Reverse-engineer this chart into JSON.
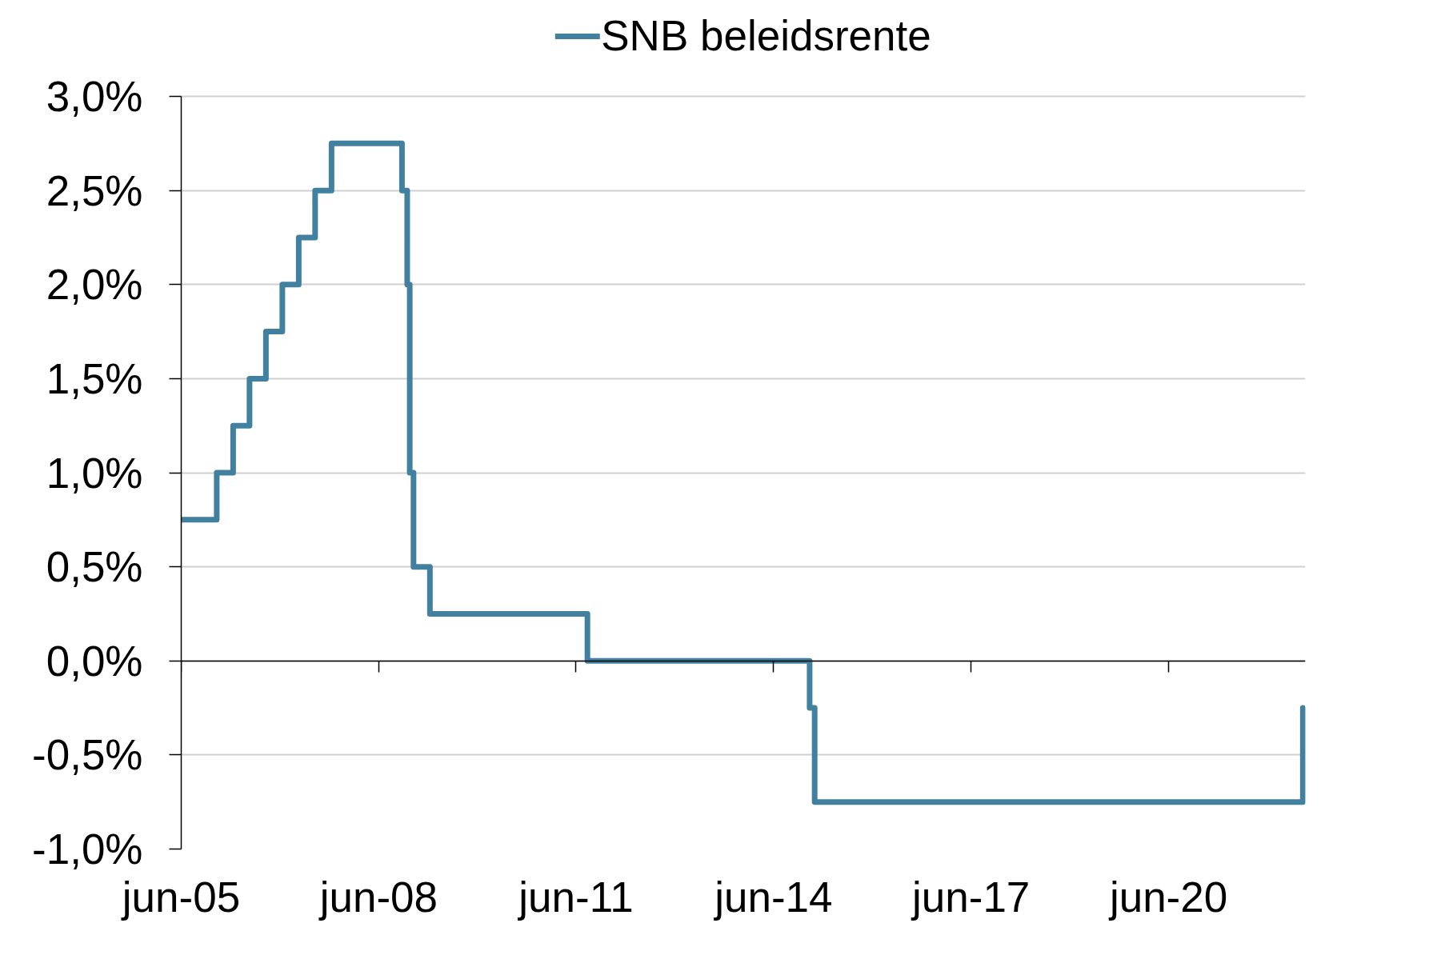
{
  "chart_data": {
    "type": "step",
    "series": [
      {
        "name": "SNB beleidsrente",
        "color": "#41809f",
        "x": [
          "2005-06-01",
          "2005-12-15",
          "2006-03-16",
          "2006-06-15",
          "2006-09-14",
          "2006-12-14",
          "2007-03-15",
          "2007-06-14",
          "2007-09-13",
          "2008-10-08",
          "2008-11-06",
          "2008-11-20",
          "2008-12-11",
          "2009-03-12",
          "2011-08-03",
          "2014-12-18",
          "2015-01-15",
          "2022-06-16"
        ],
        "values": [
          0.75,
          1.0,
          1.25,
          1.5,
          1.75,
          2.0,
          2.25,
          2.5,
          2.75,
          2.5,
          2.0,
          1.0,
          0.5,
          0.25,
          0.0,
          -0.25,
          -0.75,
          -0.25
        ]
      }
    ],
    "xlim": [
      "2005-06-01",
      "2022-06-30"
    ],
    "xticks": [
      {
        "value": "2005-06-01",
        "label": "jun-05"
      },
      {
        "value": "2008-06-01",
        "label": "jun-08"
      },
      {
        "value": "2011-06-01",
        "label": "jun-11"
      },
      {
        "value": "2014-06-01",
        "label": "jun-14"
      },
      {
        "value": "2017-06-01",
        "label": "jun-17"
      },
      {
        "value": "2020-06-01",
        "label": "jun-20"
      }
    ],
    "ylim": [
      -1.0,
      3.0
    ],
    "yticks": [
      {
        "value": -1.0,
        "label": "-1,0%"
      },
      {
        "value": -0.5,
        "label": "-0,5%"
      },
      {
        "value": 0.0,
        "label": "0,0%"
      },
      {
        "value": 0.5,
        "label": "0,5%"
      },
      {
        "value": 1.0,
        "label": "1,0%"
      },
      {
        "value": 1.5,
        "label": "1,5%"
      },
      {
        "value": 2.0,
        "label": "2,0%"
      },
      {
        "value": 2.5,
        "label": "2,5%"
      },
      {
        "value": 3.0,
        "label": "3,0%"
      }
    ],
    "grid": "y",
    "legend": "top",
    "line_style": "solid"
  }
}
